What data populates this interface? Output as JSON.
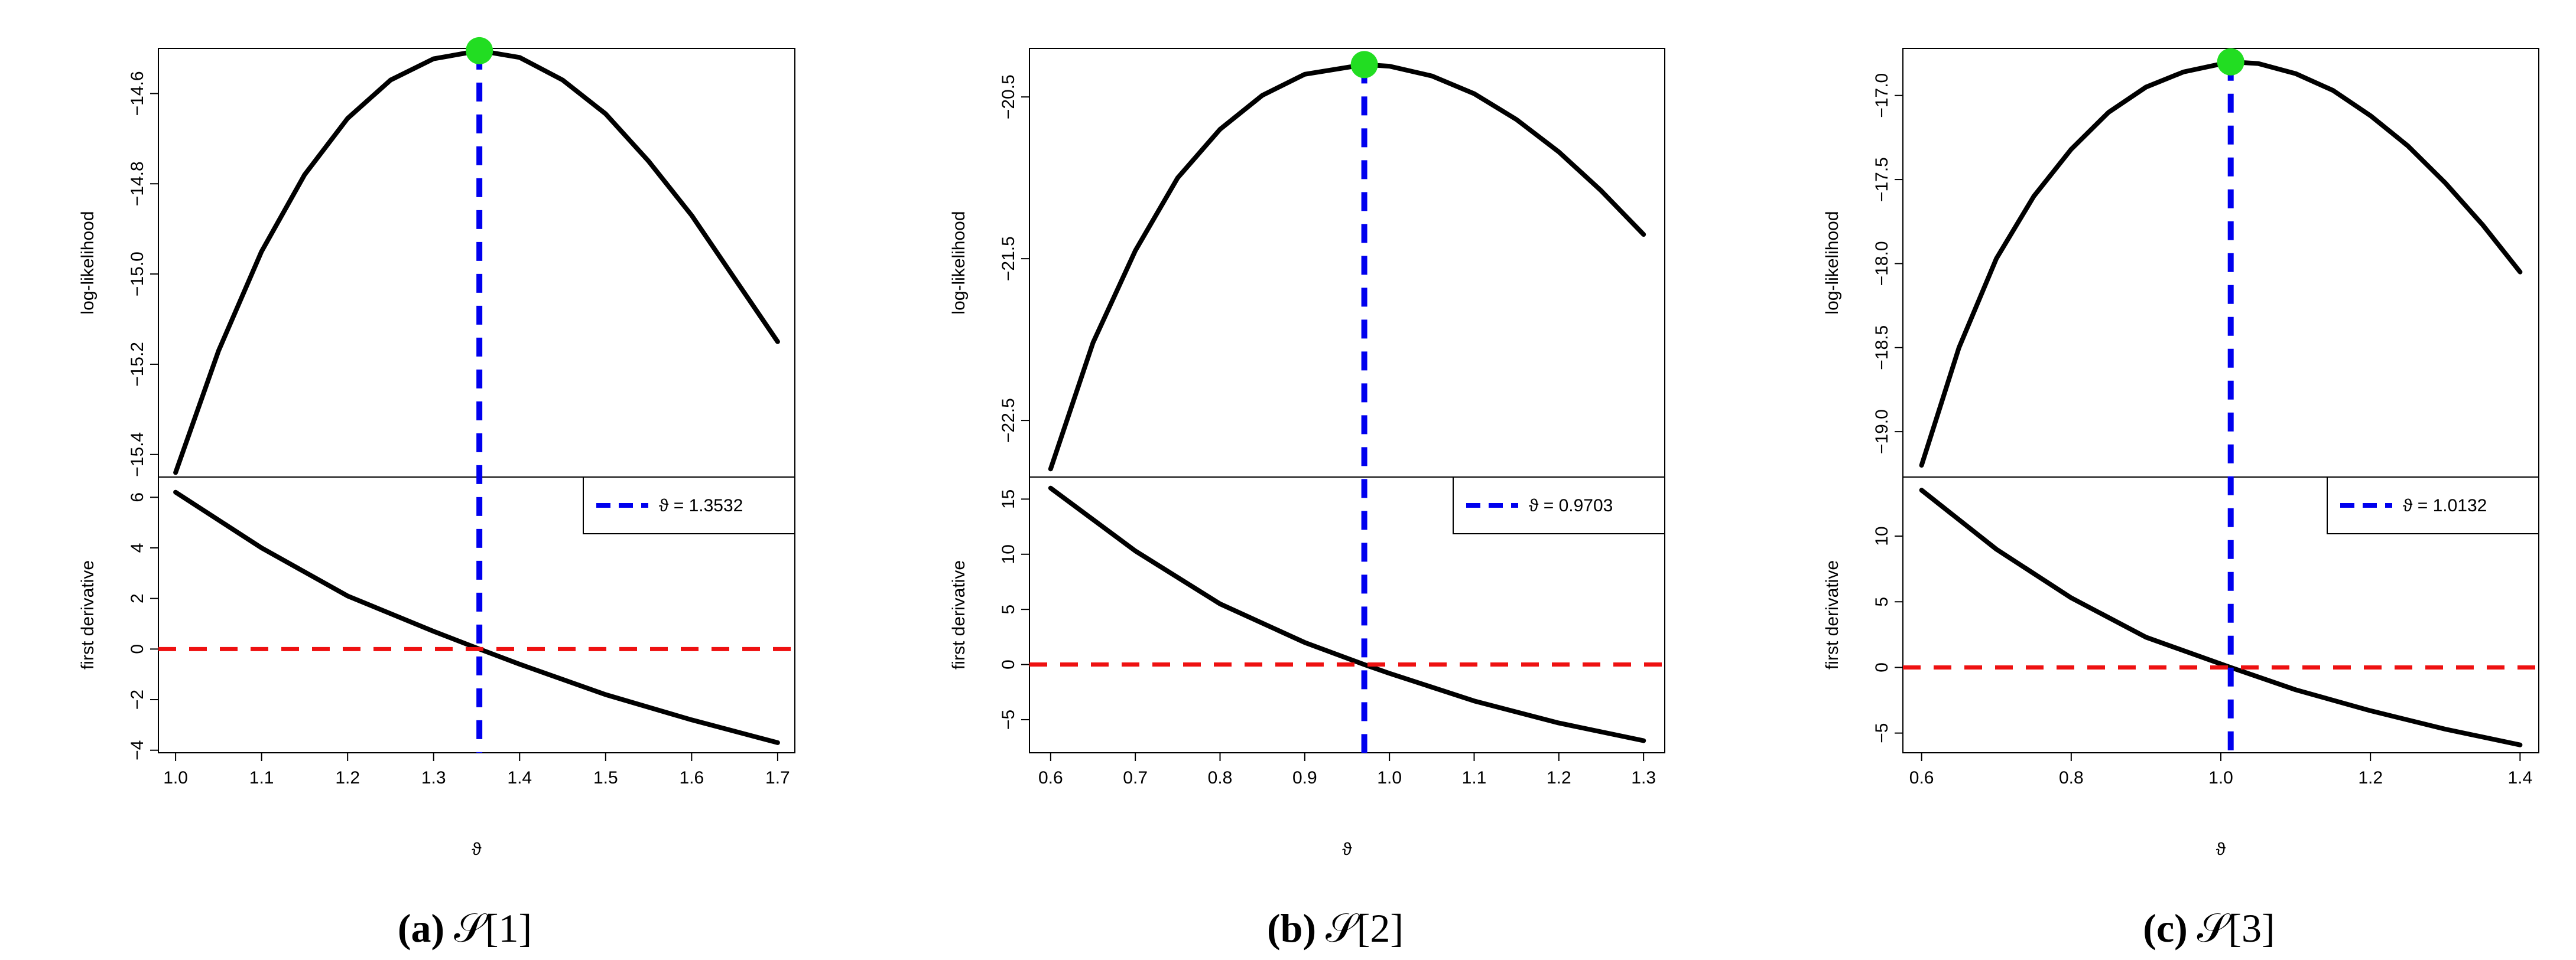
{
  "chart_data": [
    {
      "type": "line",
      "xlabel": "ϑ",
      "x_ticks": [
        1.0,
        1.1,
        1.2,
        1.3,
        1.4,
        1.5,
        1.6,
        1.7
      ],
      "xlim": [
        0.98,
        1.72
      ],
      "top": {
        "ylabel": "log-likelihood",
        "y_ticks": [
          -15.4,
          -15.2,
          -15.0,
          -14.8,
          -14.6
        ],
        "ylim": [
          -15.45,
          -14.5
        ],
        "series": [
          {
            "x": [
              1.0,
              1.05,
              1.1,
              1.15,
              1.2,
              1.25,
              1.3,
              1.3532,
              1.4,
              1.45,
              1.5,
              1.55,
              1.6,
              1.65,
              1.7
            ],
            "y": [
              -15.44,
              -15.17,
              -14.95,
              -14.78,
              -14.655,
              -14.57,
              -14.523,
              -14.505,
              -14.52,
              -14.57,
              -14.645,
              -14.75,
              -14.87,
              -15.01,
              -15.15
            ]
          }
        ],
        "max_point": {
          "x": 1.3532,
          "y": -14.505,
          "color": "#22dd22"
        }
      },
      "bottom": {
        "ylabel": "first derivative",
        "y_ticks": [
          -4,
          -2,
          0,
          2,
          4,
          6
        ],
        "ylim": [
          -4.1,
          6.8
        ],
        "series": [
          {
            "x": [
              1.0,
              1.1,
              1.2,
              1.3,
              1.3532,
              1.4,
              1.5,
              1.6,
              1.7
            ],
            "y": [
              6.2,
              4.0,
              2.1,
              0.7,
              0.0,
              -0.6,
              -1.8,
              -2.8,
              -3.7
            ]
          }
        ],
        "hline": 0
      },
      "vline": 1.3532,
      "legend": {
        "label": "ϑ = 1.3532",
        "position": "top-right"
      },
      "caption": {
        "label": "(a)",
        "set": "𝒮[1]"
      }
    },
    {
      "type": "line",
      "xlabel": "ϑ",
      "x_ticks": [
        0.6,
        0.7,
        0.8,
        0.9,
        1.0,
        1.1,
        1.2,
        1.3
      ],
      "xlim": [
        0.575,
        1.325
      ],
      "top": {
        "ylabel": "log-likelihood",
        "y_ticks": [
          -22.5,
          -21.5,
          -20.5
        ],
        "ylim": [
          -22.85,
          -20.2
        ],
        "series": [
          {
            "x": [
              0.6,
              0.65,
              0.7,
              0.75,
              0.8,
              0.85,
              0.9,
              0.9703,
              1.0,
              1.05,
              1.1,
              1.15,
              1.2,
              1.25,
              1.3
            ],
            "y": [
              -22.8,
              -22.02,
              -21.45,
              -21.0,
              -20.7,
              -20.49,
              -20.36,
              -20.3,
              -20.31,
              -20.37,
              -20.48,
              -20.64,
              -20.84,
              -21.08,
              -21.35
            ]
          }
        ],
        "max_point": {
          "x": 0.9703,
          "y": -20.3,
          "color": "#22dd22"
        }
      },
      "bottom": {
        "ylabel": "first derivative",
        "y_ticks": [
          -5,
          0,
          5,
          10,
          15
        ],
        "ylim": [
          -8,
          17
        ],
        "series": [
          {
            "x": [
              0.6,
              0.7,
              0.8,
              0.9,
              0.9703,
              1.0,
              1.1,
              1.2,
              1.3
            ],
            "y": [
              16.0,
              10.3,
              5.5,
              2.0,
              0.0,
              -0.8,
              -3.3,
              -5.3,
              -6.9
            ]
          }
        ],
        "hline": 0
      },
      "vline": 0.9703,
      "legend": {
        "label": "ϑ = 0.9703",
        "position": "top-right"
      },
      "caption": {
        "label": "(b)",
        "set": "𝒮[2]"
      }
    },
    {
      "type": "line",
      "xlabel": "ϑ",
      "x_ticks": [
        0.6,
        0.8,
        1.0,
        1.2,
        1.4
      ],
      "xlim": [
        0.575,
        1.425
      ],
      "top": {
        "ylabel": "log-likelihood",
        "y_ticks": [
          -19.0,
          -18.5,
          -18.0,
          -17.5,
          -17.0
        ],
        "ylim": [
          -19.27,
          -16.72
        ],
        "series": [
          {
            "x": [
              0.6,
              0.65,
              0.7,
              0.75,
              0.8,
              0.85,
              0.9,
              0.95,
              1.0132,
              1.05,
              1.1,
              1.15,
              1.2,
              1.25,
              1.3,
              1.35,
              1.4
            ],
            "y": [
              -19.2,
              -18.5,
              -17.97,
              -17.6,
              -17.32,
              -17.1,
              -16.95,
              -16.86,
              -16.8,
              -16.81,
              -16.87,
              -16.97,
              -17.12,
              -17.3,
              -17.52,
              -17.77,
              -18.05
            ]
          }
        ],
        "max_point": {
          "x": 1.0132,
          "y": -16.8,
          "color": "#22dd22"
        }
      },
      "bottom": {
        "ylabel": "first derivative",
        "y_ticks": [
          -5,
          0,
          5,
          10
        ],
        "ylim": [
          -6.5,
          14.5
        ],
        "series": [
          {
            "x": [
              0.6,
              0.7,
              0.8,
              0.9,
              1.0132,
              1.1,
              1.2,
              1.3,
              1.4
            ],
            "y": [
              13.5,
              9.0,
              5.3,
              2.3,
              0.0,
              -1.7,
              -3.3,
              -4.7,
              -5.9
            ]
          }
        ],
        "hline": 0
      },
      "vline": 1.0132,
      "legend": {
        "label": "ϑ = 1.0132",
        "position": "top-right"
      },
      "caption": {
        "label": "(c)",
        "set": "𝒮[3]"
      }
    }
  ],
  "colors": {
    "curve": "#000000",
    "vline": "#0000ee",
    "hline": "#ee1111",
    "max_point": "#22dd22"
  }
}
